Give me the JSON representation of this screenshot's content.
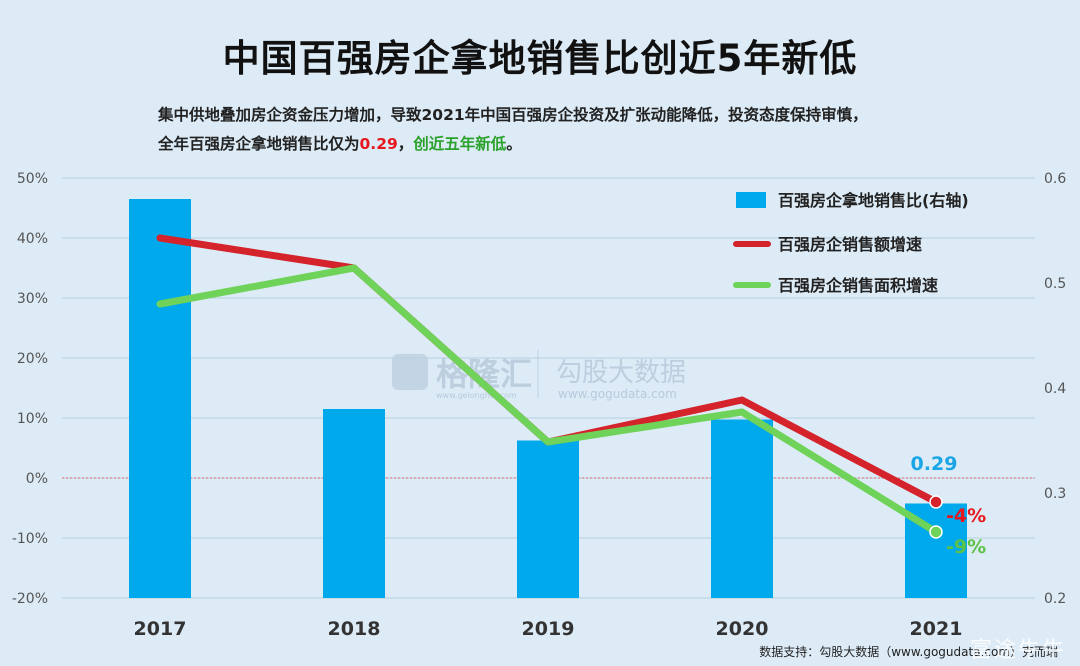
{
  "header": {
    "title": "中国百强房企拿地销售比创近5年新低",
    "subtitle_line1": "集中供地叠加房企资金压力增加，导致2021年中国百强房企投资及扩张动能降低，投资态度保持审慎，",
    "subtitle_line2_pre": "全年百强房企拿地销售比仅为",
    "subtitle_value": "0.29",
    "subtitle_sep": "，",
    "subtitle_highlight": "创近五年新低",
    "subtitle_end": "。"
  },
  "footer": {
    "source": "数据支持：勾股大数据（www.gogudata.com）克而瑞",
    "brand": "富途牛牛"
  },
  "watermark": {
    "brand_cn": "格隆汇",
    "brand_en": "www.gelonghui.com",
    "data_cn": "勾股大数据",
    "data_en": "www.gogudata.com"
  },
  "chart_data": {
    "type": "bar+line",
    "categories": [
      "2017",
      "2018",
      "2019",
      "2020",
      "2021"
    ],
    "left_axis": {
      "ticks": [
        "50%",
        "40%",
        "30%",
        "20%",
        "10%",
        "0%",
        "-10%",
        "-20%"
      ],
      "ylim": [
        -20,
        50
      ]
    },
    "right_axis": {
      "ticks": [
        "0.6",
        "0.5",
        "0.4",
        "0.3",
        "0.2"
      ],
      "ylim": [
        0.2,
        0.6
      ]
    },
    "series": [
      {
        "name": "百强房企拿地销售比(右轴)",
        "type": "bar",
        "axis": "right",
        "color": "#00a9ec",
        "values": [
          0.58,
          0.38,
          0.35,
          0.37,
          0.29
        ]
      },
      {
        "name": "百强房企销售额增速",
        "type": "line",
        "axis": "left",
        "color": "#d4232b",
        "values": [
          40,
          35,
          6,
          13,
          -4
        ]
      },
      {
        "name": "百强房企销售面积增速",
        "type": "line",
        "axis": "left",
        "color": "#6fd35a",
        "values": [
          29,
          35,
          6,
          11,
          -9
        ]
      }
    ],
    "annotations": [
      {
        "label": "0.29",
        "series": 0,
        "index": 4,
        "color": "#1aa6e6"
      },
      {
        "label": "-4%",
        "series": 1,
        "index": 4,
        "color": "#e8161d"
      },
      {
        "label": "-9%",
        "series": 2,
        "index": 4,
        "color": "#5cc247"
      }
    ],
    "grid": true,
    "legend_position": "top-right"
  }
}
